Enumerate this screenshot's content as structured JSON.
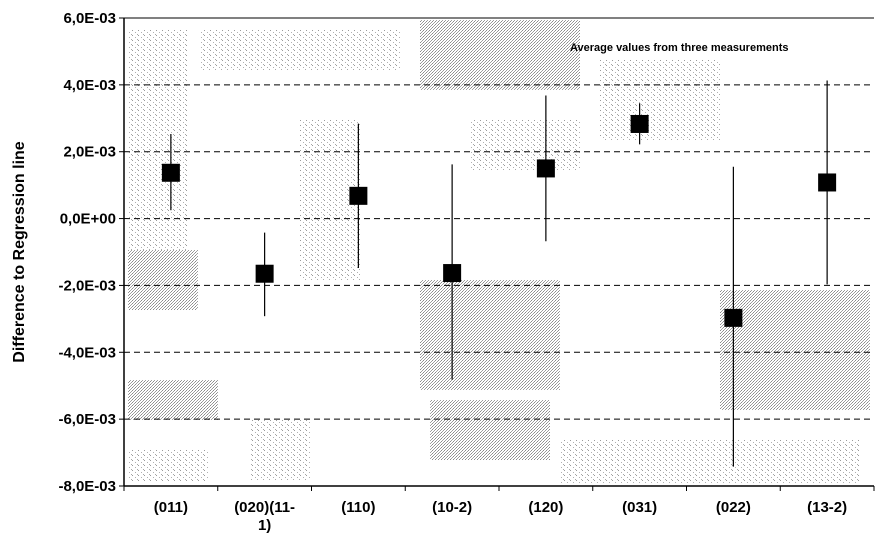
{
  "chart_data": {
    "type": "scatter",
    "title": "",
    "annotation": "Average values from three measurements",
    "xlabel": "",
    "ylabel": "Difference to Regression line",
    "ylim": [
      -0.008,
      0.006
    ],
    "yticks": [
      {
        "value": 0.006,
        "label": "6,0E-03"
      },
      {
        "value": 0.004,
        "label": "4,0E-03"
      },
      {
        "value": 0.002,
        "label": "2,0E-03"
      },
      {
        "value": 0.0,
        "label": "0,0E+00"
      },
      {
        "value": -0.002,
        "label": "-2,0E-03"
      },
      {
        "value": -0.004,
        "label": "-4,0E-03"
      },
      {
        "value": -0.006,
        "label": "-6,0E-03"
      },
      {
        "value": -0.008,
        "label": "-8,0E-03"
      }
    ],
    "categories": [
      {
        "label_lines": [
          "(011)"
        ]
      },
      {
        "label_lines": [
          "(020)(11-",
          "1)"
        ]
      },
      {
        "label_lines": [
          "(110)"
        ]
      },
      {
        "label_lines": [
          "(10-2)"
        ]
      },
      {
        "label_lines": [
          "(120)"
        ]
      },
      {
        "label_lines": [
          "(031)"
        ]
      },
      {
        "label_lines": [
          "(022)"
        ]
      },
      {
        "label_lines": [
          "(13-2)"
        ]
      }
    ],
    "series": [
      {
        "values": [
          0.00137,
          -0.00165,
          0.00068,
          -0.00163,
          0.0015,
          0.00283,
          -0.00297,
          0.00108
        ],
        "error_low": [
          0.00025,
          -0.00292,
          -0.00148,
          -0.00482,
          -0.00068,
          0.00222,
          -0.00742,
          -0.00197
        ],
        "error_high": [
          0.00253,
          -0.00042,
          0.00284,
          0.00162,
          0.00368,
          0.00345,
          0.00155,
          0.00413
        ]
      }
    ],
    "grid": {
      "horizontal_dashed": true,
      "vertical": false
    },
    "marker": "square",
    "colors": {
      "marker": "#000000",
      "grid": "#000000",
      "background_noise": "#8a8a8a"
    }
  }
}
